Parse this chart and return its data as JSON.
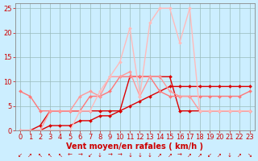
{
  "x": [
    0,
    1,
    2,
    3,
    4,
    5,
    6,
    7,
    8,
    9,
    10,
    11,
    12,
    13,
    14,
    15,
    16,
    17,
    18,
    19,
    20,
    21,
    22,
    23
  ],
  "series": [
    {
      "name": "vent_moyen_red1",
      "color": "#dd0000",
      "lw": 1.0,
      "y": [
        0,
        0,
        0,
        1,
        1,
        1,
        2,
        2,
        3,
        3,
        4,
        5,
        6,
        7,
        8,
        9,
        9,
        9,
        9,
        9,
        9,
        9,
        9,
        9
      ]
    },
    {
      "name": "vent_moyen_red2",
      "color": "#dd0000",
      "lw": 1.0,
      "y": [
        0,
        0,
        1,
        4,
        4,
        4,
        4,
        4,
        4,
        4,
        4,
        11,
        11,
        11,
        11,
        11,
        4,
        4,
        4,
        4,
        4,
        4,
        4,
        4
      ]
    },
    {
      "name": "rafales_medium",
      "color": "#ff7777",
      "lw": 1.0,
      "y": [
        8,
        7,
        4,
        4,
        4,
        4,
        4,
        7,
        7,
        8,
        11,
        11,
        11,
        11,
        8,
        7,
        7,
        7,
        7,
        7,
        7,
        7,
        7,
        8
      ]
    },
    {
      "name": "rafales_light_main",
      "color": "#ff9999",
      "lw": 1.0,
      "y": [
        0,
        0,
        0,
        4,
        4,
        4,
        7,
        8,
        7,
        11,
        11,
        12,
        7,
        11,
        11,
        8,
        7,
        7,
        4,
        4,
        4,
        4,
        4,
        4
      ]
    },
    {
      "name": "rafales_lightest",
      "color": "#ffbbbb",
      "lw": 1.0,
      "y": [
        0,
        0,
        0,
        0,
        0,
        0,
        4,
        4,
        8,
        11,
        14,
        21,
        7,
        22,
        25,
        25,
        18,
        25,
        4,
        4,
        4,
        4,
        4,
        4
      ]
    }
  ],
  "markers": "D",
  "markersize": 2,
  "xlim": [
    -0.5,
    23.5
  ],
  "ylim": [
    0,
    26
  ],
  "yticks": [
    0,
    5,
    10,
    15,
    20,
    25
  ],
  "xticks": [
    0,
    1,
    2,
    3,
    4,
    5,
    6,
    7,
    8,
    9,
    10,
    11,
    12,
    13,
    14,
    15,
    16,
    17,
    18,
    19,
    20,
    21,
    22,
    23
  ],
  "xlabel": "Vent moyen/en rafales ( km/h )",
  "background_color": "#cceeff",
  "grid_color": "#99bbbb",
  "xlabel_color": "#cc0000",
  "xlabel_fontsize": 7,
  "tick_fontsize": 6,
  "arrow_chars": [
    "↙",
    "↗",
    "↖",
    "↖",
    "↖",
    "←",
    "→",
    "↙",
    "↓",
    "→",
    "→",
    "↓",
    "↓",
    "↓",
    "↗",
    "↗",
    "→",
    "↗",
    "↗",
    "↙",
    "↗",
    "↓",
    "↗",
    "↘"
  ]
}
